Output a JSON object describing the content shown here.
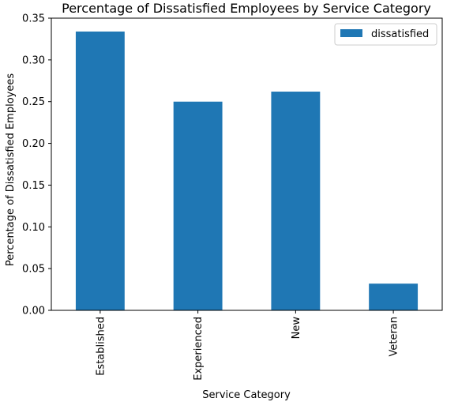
{
  "chart_data": {
    "type": "bar",
    "title": "Percentage of Dissatisfied Employees by Service Category",
    "xlabel": "Service Category",
    "ylabel": "Percentage of Dissatisfied Employees",
    "categories": [
      "Established",
      "Experienced",
      "New",
      "Veteran"
    ],
    "series": [
      {
        "name": "dissatisfied",
        "values": [
          0.334,
          0.25,
          0.262,
          0.032
        ],
        "color": "#1f77b4"
      }
    ],
    "ylim": [
      0,
      0.35
    ],
    "yticks": [
      "0.00",
      "0.05",
      "0.10",
      "0.15",
      "0.20",
      "0.25",
      "0.30",
      "0.35"
    ],
    "grid": false,
    "legend": "top-right"
  }
}
